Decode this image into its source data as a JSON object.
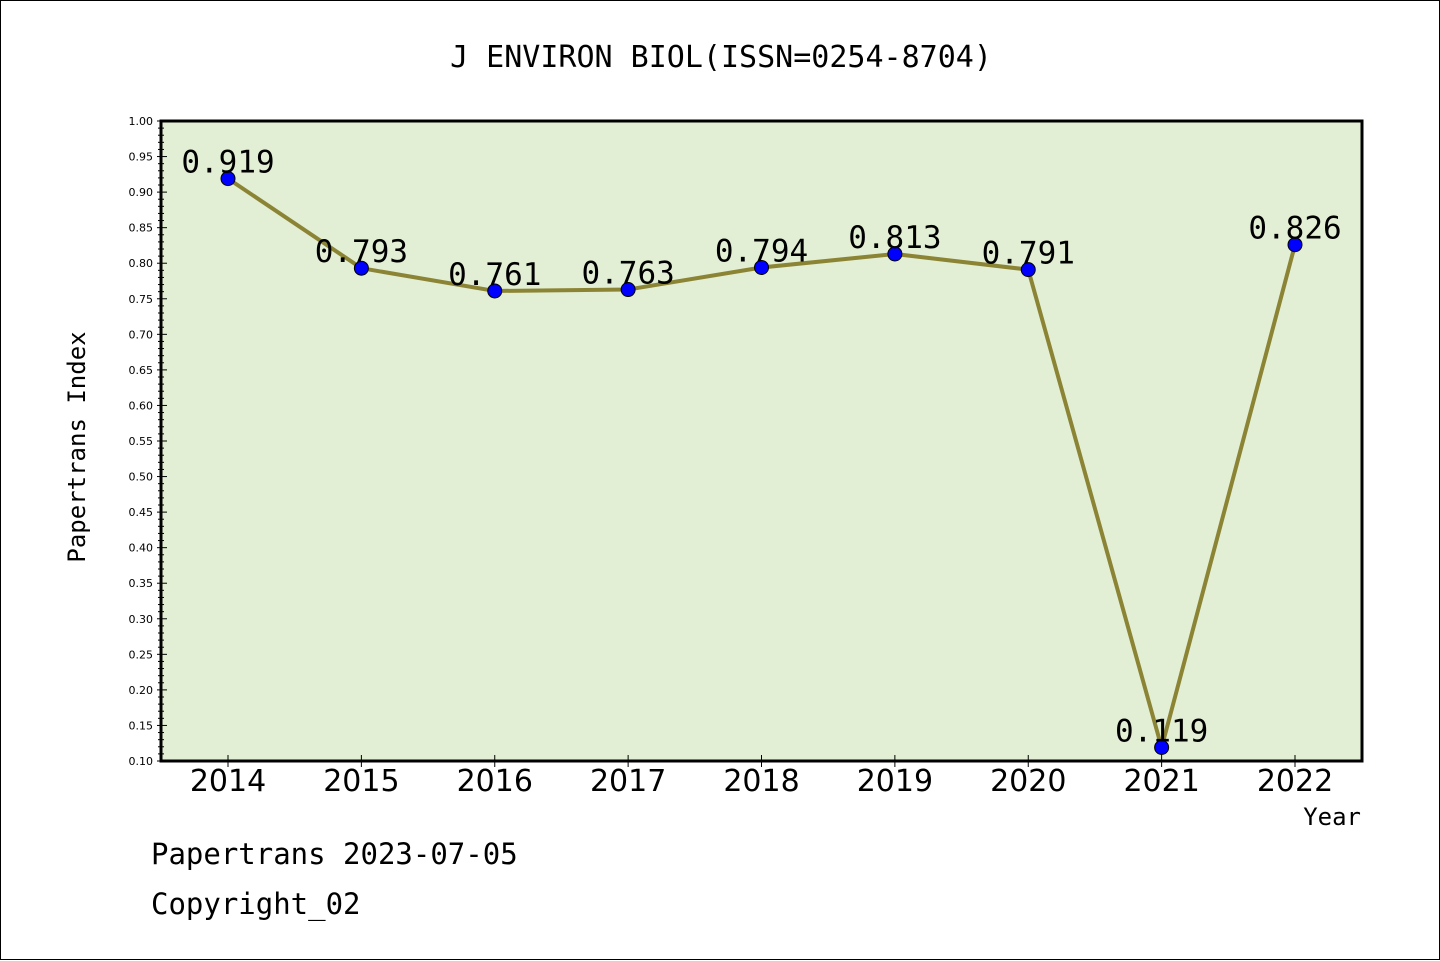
{
  "chart_data": {
    "type": "line",
    "title": "J ENVIRON BIOL(ISSN=0254-8704)",
    "xlabel": "Year",
    "ylabel": "Papertrans Index",
    "categories": [
      "2014",
      "2015",
      "2016",
      "2017",
      "2018",
      "2019",
      "2020",
      "2021",
      "2022"
    ],
    "series": [
      {
        "values": [
          0.919,
          0.793,
          0.761,
          0.763,
          0.794,
          0.813,
          0.791,
          0.119,
          0.826
        ],
        "labels": [
          "0.919",
          "0.793",
          "0.761",
          "0.763",
          "0.794",
          "0.813",
          "0.791",
          "0.119",
          "0.826"
        ]
      }
    ],
    "ylim": [
      0.1,
      1.0
    ],
    "yticks": [
      "0.10",
      "0.15",
      "0.20",
      "0.25",
      "0.30",
      "0.35",
      "0.40",
      "0.45",
      "0.50",
      "0.55",
      "0.60",
      "0.65",
      "0.70",
      "0.75",
      "0.80",
      "0.85",
      "0.90",
      "0.95",
      "1.00"
    ],
    "grid": false,
    "colors": {
      "plot_background": "#e2efd4",
      "line": "#8c8435",
      "marker": "#0000ff"
    }
  },
  "footer": {
    "line1": "Papertrans 2023-07-05",
    "line2": "Copyright_02"
  }
}
